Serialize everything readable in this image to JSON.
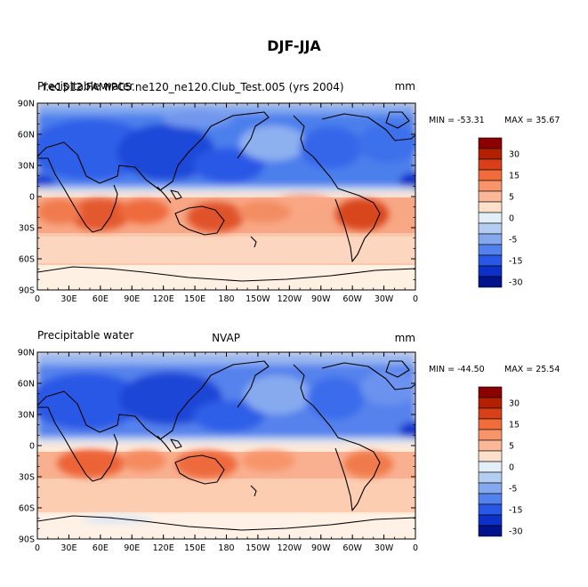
{
  "title": "DJF-JJA",
  "panels": [
    {
      "left_title": "Precipitable water",
      "left_title_overlap": "f.e1512.FAMIPC5.ne120_ne120.Club_Test.005 (yrs 2004)",
      "center_title": "",
      "units": "mm",
      "min_label": "MIN = -53.31",
      "max_label": "MAX =  35.67"
    },
    {
      "left_title": "Precipitable water",
      "center_title": "NVAP",
      "units": "mm",
      "min_label": "MIN = -44.50",
      "max_label": "MAX =  25.54"
    }
  ],
  "lat_ticks": [
    "90N",
    "60N",
    "30N",
    "0",
    "30S",
    "60S",
    "90S"
  ],
  "lon_ticks": [
    "0",
    "30E",
    "60E",
    "90E",
    "120E",
    "150E",
    "180",
    "150W",
    "120W",
    "90W",
    "60W",
    "30W",
    "0"
  ],
  "colorbar": {
    "colors": [
      "#8b0000",
      "#b22000",
      "#d8401a",
      "#f06c3a",
      "#f7946a",
      "#fbb898",
      "#fde0cc",
      "#e2eef8",
      "#b4cdf2",
      "#85a8ee",
      "#5482ec",
      "#2a58e6",
      "#0c30c8",
      "#00138c"
    ],
    "labels": [
      "30",
      "15",
      "5",
      "0",
      "-5",
      "-15",
      "-30"
    ]
  },
  "chart_data": [
    {
      "type": "heatmap",
      "title": "DJF-JJA",
      "subtitle": "Precipitable water",
      "units": "mm",
      "x_ticks": [
        "0",
        "30E",
        "60E",
        "90E",
        "120E",
        "150E",
        "180",
        "150W",
        "120W",
        "90W",
        "60W",
        "30W",
        "0"
      ],
      "y_ticks": [
        "90N",
        "60N",
        "30N",
        "0",
        "30S",
        "60S",
        "90S"
      ],
      "min": -53.31,
      "max": 35.67,
      "contour_levels": [
        -30,
        -15,
        -5,
        0,
        5,
        15,
        30
      ]
    },
    {
      "type": "heatmap",
      "title": "NVAP",
      "subtitle": "Precipitable water",
      "units": "mm",
      "x_ticks": [
        "0",
        "30E",
        "60E",
        "90E",
        "120E",
        "150E",
        "180",
        "150W",
        "120W",
        "90W",
        "60W",
        "30W",
        "0"
      ],
      "y_ticks": [
        "90N",
        "60N",
        "30N",
        "0",
        "30S",
        "60S",
        "90S"
      ],
      "min": -44.5,
      "max": 25.54,
      "contour_levels": [
        -30,
        -15,
        -5,
        0,
        5,
        15,
        30
      ]
    }
  ]
}
